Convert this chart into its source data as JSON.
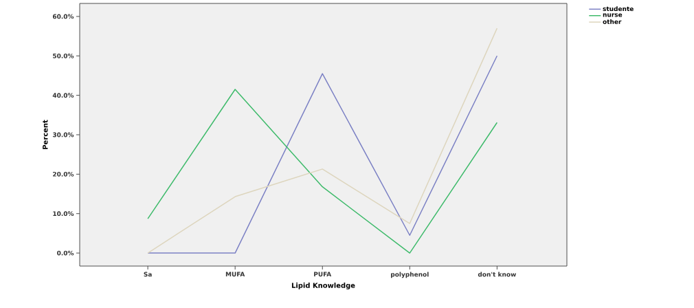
{
  "chart_data": {
    "type": "line",
    "xlabel": "Lipid Knowledge",
    "ylabel": "Percent",
    "categories": [
      "Sa",
      "MUFA",
      "PUFA",
      "polyphenol",
      "don't know"
    ],
    "series": [
      {
        "name": "studente",
        "color": "#7b80c4",
        "values": [
          0,
          0,
          45.5,
          4.5,
          50
        ]
      },
      {
        "name": "nurse",
        "color": "#3dba6a",
        "values": [
          8.7,
          41.5,
          16.8,
          0,
          33.1
        ]
      },
      {
        "name": "other",
        "color": "#ddd5bd",
        "values": [
          0,
          14.3,
          21.3,
          7.5,
          57
        ]
      }
    ],
    "ylim": [
      -3.3,
      63.3
    ],
    "yticks": [
      {
        "value": 0,
        "label": "0.0%"
      },
      {
        "value": 10,
        "label": "10.0%"
      },
      {
        "value": 20,
        "label": "20.0%"
      },
      {
        "value": 30,
        "label": "30.0%"
      },
      {
        "value": 40,
        "label": "40.0%"
      },
      {
        "value": 50,
        "label": "50.0%"
      },
      {
        "value": 60,
        "label": "60.0%"
      }
    ],
    "grid": false,
    "legend": "top right",
    "marker": "none",
    "line_style": "solid"
  }
}
